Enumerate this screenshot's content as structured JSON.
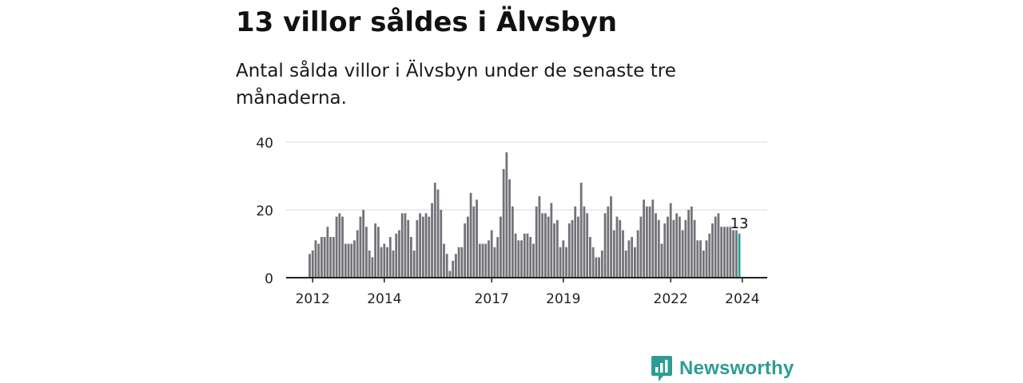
{
  "header": {
    "title": "13 villor såldes i Älvsbyn",
    "subtitle": "Antal sålda villor i Älvsbyn under de senaste tre månaderna."
  },
  "brand": {
    "name": "Newsworthy",
    "icon": "bar-chart-badge-icon",
    "color": "#2e9c93"
  },
  "colors": {
    "bar": "#737278",
    "highlight": "#25a39a",
    "grid": "#d9d9d9",
    "axis": "#222222",
    "text": "#222222"
  },
  "chart_data": {
    "type": "bar",
    "x_start": "2011-12",
    "x_interval": "month",
    "y_ticks": [
      0,
      20,
      40
    ],
    "ylim": [
      0,
      40
    ],
    "x_ticks": [
      "2012",
      "2014",
      "2017",
      "2019",
      "2022",
      "2024"
    ],
    "x_tick_months": [
      "2012-01",
      "2014-01",
      "2017-01",
      "2019-01",
      "2022-01",
      "2024-01"
    ],
    "grid": true,
    "highlight_label": "13",
    "values": [
      7,
      8,
      11,
      10,
      12,
      12,
      15,
      12,
      12,
      18,
      19,
      18,
      10,
      10,
      10,
      11,
      14,
      18,
      20,
      15,
      8,
      6,
      16,
      15,
      9,
      10,
      9,
      12,
      8,
      13,
      14,
      19,
      19,
      17,
      12,
      8,
      17,
      19,
      18,
      19,
      18,
      22,
      28,
      26,
      20,
      10,
      7,
      2,
      5,
      7,
      9,
      9,
      16,
      18,
      25,
      21,
      23,
      10,
      10,
      10,
      11,
      14,
      9,
      12,
      18,
      32,
      37,
      29,
      21,
      13,
      11,
      11,
      13,
      13,
      12,
      10,
      21,
      24,
      19,
      19,
      18,
      22,
      16,
      17,
      9,
      11,
      9,
      16,
      17,
      21,
      18,
      28,
      21,
      19,
      12,
      9,
      6,
      6,
      8,
      19,
      21,
      24,
      14,
      18,
      17,
      14,
      8,
      11,
      12,
      9,
      14,
      18,
      23,
      21,
      21,
      23,
      19,
      17,
      10,
      16,
      18,
      22,
      17,
      19,
      18,
      14,
      17,
      20,
      21,
      17,
      11,
      11,
      8,
      11,
      13,
      16,
      18,
      19,
      15,
      15,
      15,
      15,
      14,
      14,
      13
    ]
  }
}
